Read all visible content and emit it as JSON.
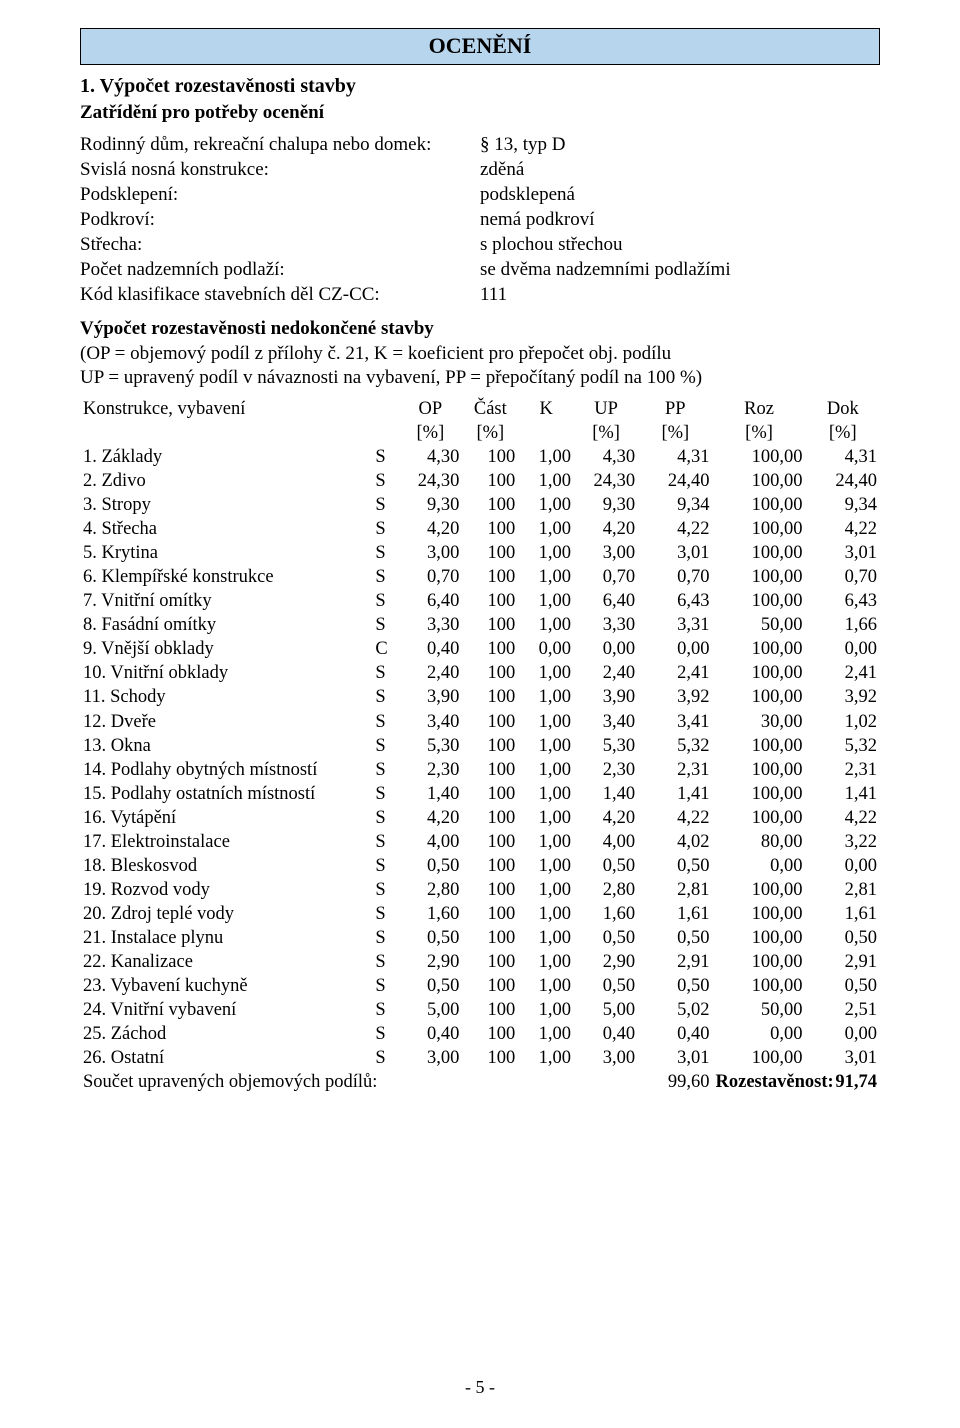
{
  "banner_title": "OCENĚNÍ",
  "section_title": "1. Výpočet rozestavěnosti stavby",
  "subsection_title": "Zatřídění pro potřeby ocenění",
  "classification": [
    {
      "k": "Rodinný dům, rekreační chalupa nebo domek:",
      "v": "§ 13, typ D"
    },
    {
      "k": "Svislá nosná konstrukce:",
      "v": "zděná"
    },
    {
      "k": "Podsklepení:",
      "v": "podsklepená"
    },
    {
      "k": "Podkroví:",
      "v": "nemá podkroví"
    },
    {
      "k": "Střecha:",
      "v": "s plochou střechou"
    },
    {
      "k": "Počet nadzemních podlaží:",
      "v": "se dvěma nadzemními podlažími"
    },
    {
      "k": "Kód klasifikace stavebních děl CZ-CC:",
      "v": "111"
    }
  ],
  "calc_heading": "Výpočet rozestavěnosti nedokončené stavby",
  "calc_desc_line1": "(OP = objemový podíl z přílohy č. 21, K = koeficient pro přepočet obj. podílu",
  "calc_desc_line2": "UP = upravený podíl v návaznosti na vybavení, PP = přepočítaný podíl na 100 %)",
  "header_label": "Konstrukce, vybavení",
  "cols": {
    "op_top": "OP",
    "op_bot": "[%]",
    "cast_top": "Část",
    "cast_bot": "[%]",
    "k": "K",
    "up_top": "UP",
    "up_bot": "[%]",
    "pp_top": "PP",
    "pp_bot": "[%]",
    "roz_top": "Roz",
    "roz_bot": "[%]",
    "dok_top": "Dok",
    "dok_bot": "[%]"
  },
  "rows": [
    {
      "n": "1. Základy",
      "f": "S",
      "op": "4,30",
      "cast": "100",
      "k": "1,00",
      "up": "4,30",
      "pp": "4,31",
      "roz": "100,00",
      "dok": "4,31"
    },
    {
      "n": "2. Zdivo",
      "f": "S",
      "op": "24,30",
      "cast": "100",
      "k": "1,00",
      "up": "24,30",
      "pp": "24,40",
      "roz": "100,00",
      "dok": "24,40"
    },
    {
      "n": "3. Stropy",
      "f": "S",
      "op": "9,30",
      "cast": "100",
      "k": "1,00",
      "up": "9,30",
      "pp": "9,34",
      "roz": "100,00",
      "dok": "9,34"
    },
    {
      "n": "4. Střecha",
      "f": "S",
      "op": "4,20",
      "cast": "100",
      "k": "1,00",
      "up": "4,20",
      "pp": "4,22",
      "roz": "100,00",
      "dok": "4,22"
    },
    {
      "n": "5. Krytina",
      "f": "S",
      "op": "3,00",
      "cast": "100",
      "k": "1,00",
      "up": "3,00",
      "pp": "3,01",
      "roz": "100,00",
      "dok": "3,01"
    },
    {
      "n": "6. Klempířské konstrukce",
      "f": "S",
      "op": "0,70",
      "cast": "100",
      "k": "1,00",
      "up": "0,70",
      "pp": "0,70",
      "roz": "100,00",
      "dok": "0,70"
    },
    {
      "n": "7. Vnitřní omítky",
      "f": "S",
      "op": "6,40",
      "cast": "100",
      "k": "1,00",
      "up": "6,40",
      "pp": "6,43",
      "roz": "100,00",
      "dok": "6,43"
    },
    {
      "n": "8. Fasádní omítky",
      "f": "S",
      "op": "3,30",
      "cast": "100",
      "k": "1,00",
      "up": "3,30",
      "pp": "3,31",
      "roz": "50,00",
      "dok": "1,66"
    },
    {
      "n": "9. Vnější obklady",
      "f": "C",
      "op": "0,40",
      "cast": "100",
      "k": "0,00",
      "up": "0,00",
      "pp": "0,00",
      "roz": "100,00",
      "dok": "0,00"
    },
    {
      "n": "10. Vnitřní obklady",
      "f": "S",
      "op": "2,40",
      "cast": "100",
      "k": "1,00",
      "up": "2,40",
      "pp": "2,41",
      "roz": "100,00",
      "dok": "2,41"
    },
    {
      "n": "11. Schody",
      "f": "S",
      "op": "3,90",
      "cast": "100",
      "k": "1,00",
      "up": "3,90",
      "pp": "3,92",
      "roz": "100,00",
      "dok": "3,92"
    },
    {
      "n": "12. Dveře",
      "f": "S",
      "op": "3,40",
      "cast": "100",
      "k": "1,00",
      "up": "3,40",
      "pp": "3,41",
      "roz": "30,00",
      "dok": "1,02"
    },
    {
      "n": "13. Okna",
      "f": "S",
      "op": "5,30",
      "cast": "100",
      "k": "1,00",
      "up": "5,30",
      "pp": "5,32",
      "roz": "100,00",
      "dok": "5,32"
    },
    {
      "n": "14. Podlahy obytných místností",
      "f": "S",
      "op": "2,30",
      "cast": "100",
      "k": "1,00",
      "up": "2,30",
      "pp": "2,31",
      "roz": "100,00",
      "dok": "2,31"
    },
    {
      "n": "15. Podlahy ostatních místností",
      "f": "S",
      "op": "1,40",
      "cast": "100",
      "k": "1,00",
      "up": "1,40",
      "pp": "1,41",
      "roz": "100,00",
      "dok": "1,41"
    },
    {
      "n": "16. Vytápění",
      "f": "S",
      "op": "4,20",
      "cast": "100",
      "k": "1,00",
      "up": "4,20",
      "pp": "4,22",
      "roz": "100,00",
      "dok": "4,22"
    },
    {
      "n": "17. Elektroinstalace",
      "f": "S",
      "op": "4,00",
      "cast": "100",
      "k": "1,00",
      "up": "4,00",
      "pp": "4,02",
      "roz": "80,00",
      "dok": "3,22"
    },
    {
      "n": "18. Bleskosvod",
      "f": "S",
      "op": "0,50",
      "cast": "100",
      "k": "1,00",
      "up": "0,50",
      "pp": "0,50",
      "roz": "0,00",
      "dok": "0,00"
    },
    {
      "n": "19. Rozvod vody",
      "f": "S",
      "op": "2,80",
      "cast": "100",
      "k": "1,00",
      "up": "2,80",
      "pp": "2,81",
      "roz": "100,00",
      "dok": "2,81"
    },
    {
      "n": "20. Zdroj teplé vody",
      "f": "S",
      "op": "1,60",
      "cast": "100",
      "k": "1,00",
      "up": "1,60",
      "pp": "1,61",
      "roz": "100,00",
      "dok": "1,61"
    },
    {
      "n": "21. Instalace plynu",
      "f": "S",
      "op": "0,50",
      "cast": "100",
      "k": "1,00",
      "up": "0,50",
      "pp": "0,50",
      "roz": "100,00",
      "dok": "0,50"
    },
    {
      "n": "22. Kanalizace",
      "f": "S",
      "op": "2,90",
      "cast": "100",
      "k": "1,00",
      "up": "2,90",
      "pp": "2,91",
      "roz": "100,00",
      "dok": "2,91"
    },
    {
      "n": "23. Vybavení kuchyně",
      "f": "S",
      "op": "0,50",
      "cast": "100",
      "k": "1,00",
      "up": "0,50",
      "pp": "0,50",
      "roz": "100,00",
      "dok": "0,50"
    },
    {
      "n": "24. Vnitřní vybavení",
      "f": "S",
      "op": "5,00",
      "cast": "100",
      "k": "1,00",
      "up": "5,00",
      "pp": "5,02",
      "roz": "50,00",
      "dok": "2,51"
    },
    {
      "n": "25. Záchod",
      "f": "S",
      "op": "0,40",
      "cast": "100",
      "k": "1,00",
      "up": "0,40",
      "pp": "0,40",
      "roz": "0,00",
      "dok": "0,00"
    },
    {
      "n": "26. Ostatní",
      "f": "S",
      "op": "3,00",
      "cast": "100",
      "k": "1,00",
      "up": "3,00",
      "pp": "3,01",
      "roz": "100,00",
      "dok": "3,01"
    }
  ],
  "sum_label": "Součet upravených objemových podílů:",
  "sum_value": "99,60",
  "sum_roz_label": "Rozestavěnost:",
  "sum_roz_value": "91,74",
  "page_number": "- 5 -"
}
